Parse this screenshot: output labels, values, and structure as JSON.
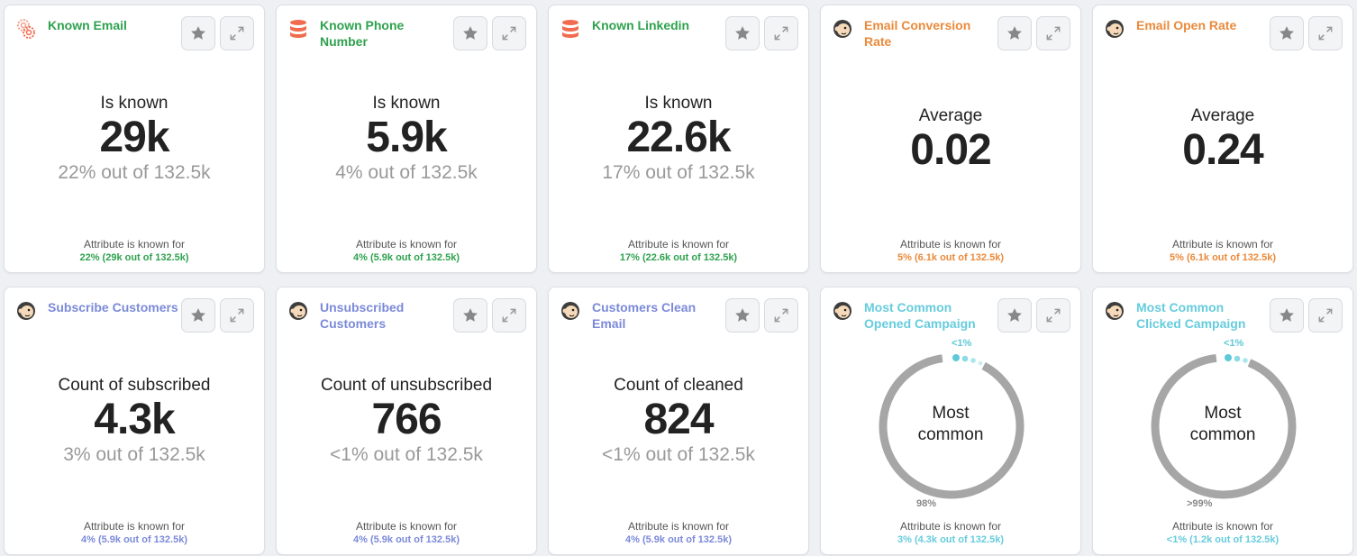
{
  "common": {
    "foot_label": "Attribute is known for"
  },
  "cards": [
    {
      "title": "Known Email",
      "label": "Is known",
      "value": "29k",
      "sub": "22% out of 132.5k",
      "foot": "22% (29k out of 132.5k)"
    },
    {
      "title": "Known Phone Number",
      "label": "Is known",
      "value": "5.9k",
      "sub": "4% out of 132.5k",
      "foot": "4% (5.9k out of 132.5k)"
    },
    {
      "title": "Known Linkedin",
      "label": "Is known",
      "value": "22.6k",
      "sub": "17% out of 132.5k",
      "foot": "17% (22.6k out of 132.5k)"
    },
    {
      "title": "Email Conversion Rate",
      "label": "Average",
      "value": "0.02",
      "foot": "5% (6.1k out of 132.5k)"
    },
    {
      "title": "Email Open Rate",
      "label": "Average",
      "value": "0.24",
      "foot": "5% (6.1k out of 132.5k)"
    },
    {
      "title": "Subscribe Customers",
      "label": "Count of subscribed",
      "value": "4.3k",
      "sub": "3% out of 132.5k",
      "foot": "4% (5.9k out of 132.5k)"
    },
    {
      "title": "Unsubscribed Customers",
      "label": "Count of unsubscribed",
      "value": "766",
      "sub": "<1% out of 132.5k",
      "foot": "4% (5.9k out of 132.5k)"
    },
    {
      "title": "Customers Clean Email",
      "label": "Count of cleaned",
      "value": "824",
      "sub": "<1% out of 132.5k",
      "foot": "4% (5.9k out of 132.5k)"
    },
    {
      "title": "Most Common Opened Campaign",
      "center_line1": "Most",
      "center_line2": "common",
      "top_pct": "<1%",
      "bottom_pct": "98%",
      "foot": "3% (4.3k out of 132.5k)"
    },
    {
      "title": "Most Common Clicked Campaign",
      "center_line1": "Most",
      "center_line2": "common",
      "top_pct": "<1%",
      "bottom_pct": ">99%",
      "foot": "<1% (1.2k out of 132.5k)"
    }
  ],
  "icons": [
    "settings-cogs-icon",
    "database-icon",
    "database-icon",
    "mailchimp-icon",
    "mailchimp-icon",
    "mailchimp-icon",
    "mailchimp-icon",
    "mailchimp-icon",
    "mailchimp-icon",
    "mailchimp-icon"
  ],
  "colors": {
    "green": "#2ea24e",
    "orange": "#ea8a3b",
    "blue": "#7b8ad9",
    "teal": "#66ccdd",
    "database": "#f26b4f"
  }
}
